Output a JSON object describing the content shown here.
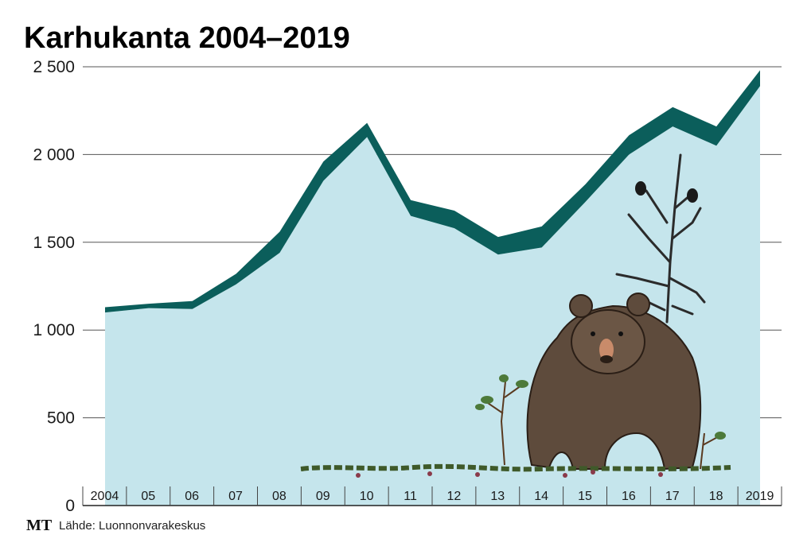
{
  "chart_data": {
    "type": "area",
    "title": "Karhukanta 2004–2019",
    "categories": [
      "2004",
      "05",
      "06",
      "07",
      "08",
      "09",
      "10",
      "11",
      "12",
      "13",
      "14",
      "15",
      "16",
      "17",
      "18",
      "2019"
    ],
    "series": [
      {
        "name": "",
        "low": [
          1100,
          1125,
          1120,
          1260,
          1440,
          1850,
          2100,
          1650,
          1580,
          1430,
          1470,
          1730,
          2000,
          2160,
          2050,
          2390
        ],
        "high": [
          1130,
          1150,
          1165,
          1320,
          1560,
          1960,
          2180,
          1740,
          1680,
          1530,
          1590,
          1830,
          2110,
          2270,
          2160,
          2480
        ]
      }
    ],
    "yticks": [
      "0",
      "500",
      "1 000",
      "1 500",
      "2 000",
      "2 500"
    ],
    "ytick_values": [
      0,
      500,
      1000,
      1500,
      2000,
      2500
    ],
    "ylim": [
      0,
      2500
    ],
    "grid": true,
    "colors": {
      "band": "#0b5e5b",
      "fill": "#c5e5ec",
      "grid": "#555555"
    },
    "illustration": "bear-under-tree-with-birds"
  },
  "footer": {
    "logo": "MT",
    "source": "Lähde: Luonnonvarakeskus"
  }
}
